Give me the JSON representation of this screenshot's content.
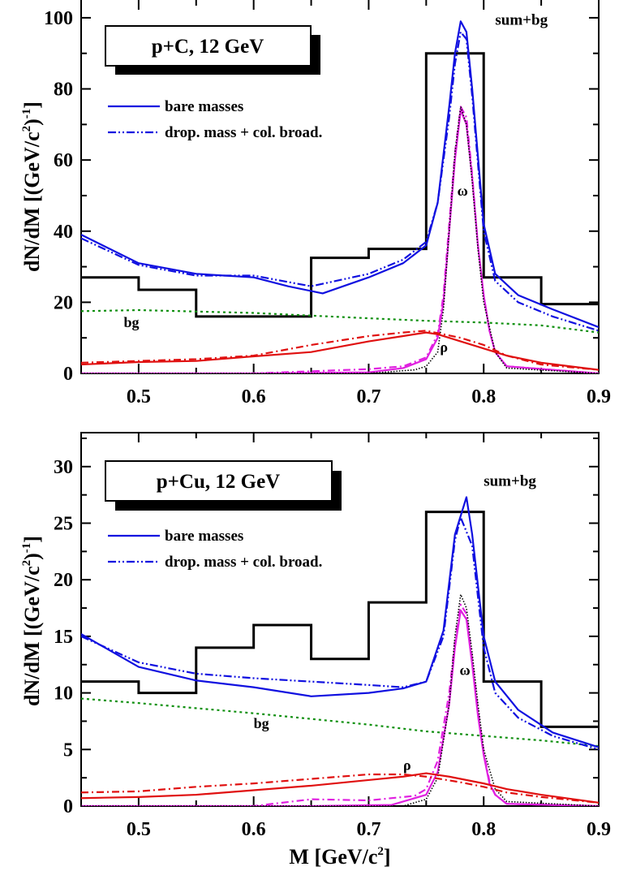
{
  "chart_data": [
    {
      "type": "line",
      "id": "top",
      "title": "p+C,  12 GeV",
      "xlabel": "",
      "ylabel": "dN/dM [(GeV/c²)⁻¹]",
      "ylabel_parts": {
        "main": "dN/dM [(GeV/c",
        "sq": "2",
        "close": ")",
        "exp": "-1",
        "end": "]"
      },
      "xlim": [
        0.45,
        0.9
      ],
      "ylim": [
        0,
        105
      ],
      "xticks": [
        0.5,
        0.6,
        0.7,
        0.8,
        0.9
      ],
      "xtick_labels": [
        "0.5",
        "0.6",
        "0.7",
        "0.8",
        "0.9"
      ],
      "yticks": [
        0,
        20,
        40,
        60,
        80,
        100
      ],
      "ytick_labels": [
        "0",
        "20",
        "40",
        "60",
        "80",
        "100"
      ],
      "legend": [
        {
          "label": "bare masses",
          "style": "solid",
          "color": "#1010e0"
        },
        {
          "label": "drop. mass + col. broad.",
          "style": "dashdotdot",
          "color": "#1010e0"
        }
      ],
      "annotations": [
        {
          "text": "sum+bg",
          "x": 0.81,
          "y": 98
        },
        {
          "text": "ω",
          "x": 0.777,
          "y": 50
        },
        {
          "text": "ρ",
          "x": 0.762,
          "y": 6
        },
        {
          "text": "bg",
          "x": 0.487,
          "y": 13
        }
      ],
      "histogram": {
        "color": "#000000",
        "edges": [
          0.45,
          0.5,
          0.55,
          0.6,
          0.65,
          0.7,
          0.75,
          0.8,
          0.85,
          0.9
        ],
        "values": [
          27,
          23.5,
          16,
          16,
          32.5,
          35,
          90,
          27,
          19.5
        ]
      },
      "series": [
        {
          "name": "bg",
          "color": "#109010",
          "style": "dotted",
          "x": [
            0.45,
            0.5,
            0.6,
            0.7,
            0.75,
            0.8,
            0.85,
            0.9
          ],
          "y": [
            17.5,
            17.8,
            17,
            15.5,
            14.8,
            14.3,
            13.5,
            11.5
          ]
        },
        {
          "name": "sum+bg bare masses",
          "color": "#1010e0",
          "style": "solid",
          "x": [
            0.45,
            0.5,
            0.55,
            0.6,
            0.63,
            0.66,
            0.7,
            0.73,
            0.75,
            0.76,
            0.77,
            0.775,
            0.78,
            0.785,
            0.79,
            0.8,
            0.81,
            0.83,
            0.86,
            0.9
          ],
          "y": [
            39,
            31,
            28,
            27,
            24.5,
            22.5,
            27,
            31,
            36,
            48,
            75,
            90,
            99,
            96,
            80,
            42,
            28,
            22,
            18,
            13
          ]
        },
        {
          "name": "sum+bg dropping mass + collisional broadening",
          "color": "#1010e0",
          "style": "dashdotdot",
          "x": [
            0.45,
            0.5,
            0.55,
            0.6,
            0.65,
            0.7,
            0.73,
            0.75,
            0.76,
            0.77,
            0.775,
            0.78,
            0.785,
            0.79,
            0.8,
            0.81,
            0.83,
            0.86,
            0.9
          ],
          "y": [
            38,
            30.5,
            27.5,
            27.5,
            24.5,
            28,
            32,
            37,
            48,
            72,
            87,
            96,
            94,
            78,
            40,
            26,
            20,
            16,
            12
          ]
        },
        {
          "name": "omega bare masses",
          "color": "#e020e0",
          "style": "solid",
          "x": [
            0.45,
            0.6,
            0.7,
            0.73,
            0.75,
            0.76,
            0.765,
            0.77,
            0.775,
            0.78,
            0.785,
            0.79,
            0.795,
            0.8,
            0.805,
            0.81,
            0.82,
            0.9
          ],
          "y": [
            0,
            0,
            0.3,
            1.5,
            4,
            10,
            20,
            40,
            60,
            74,
            70,
            55,
            36,
            22,
            12,
            6,
            2,
            0
          ]
        },
        {
          "name": "omega dropping mass + collisional broadening",
          "color": "#e020e0",
          "style": "dashdot",
          "x": [
            0.45,
            0.6,
            0.65,
            0.7,
            0.73,
            0.75,
            0.76,
            0.765,
            0.77,
            0.775,
            0.78,
            0.785,
            0.79,
            0.795,
            0.8,
            0.805,
            0.81,
            0.82,
            0.9
          ],
          "y": [
            0,
            0,
            0.6,
            1.2,
            2,
            4.5,
            11,
            22,
            42,
            62,
            75,
            72,
            56,
            36,
            22,
            12,
            6,
            2,
            0
          ]
        },
        {
          "name": "omega vacuum",
          "color": "#000000",
          "style": "dotted-fine",
          "x": [
            0.45,
            0.7,
            0.74,
            0.75,
            0.76,
            0.765,
            0.77,
            0.775,
            0.78,
            0.785,
            0.79,
            0.795,
            0.8,
            0.81,
            0.82,
            0.9
          ],
          "y": [
            0,
            0,
            1,
            2,
            6,
            18,
            40,
            62,
            75,
            70,
            54,
            35,
            20,
            6,
            1.5,
            0
          ]
        },
        {
          "name": "rho bare masses",
          "color": "#e01010",
          "style": "solid",
          "x": [
            0.45,
            0.5,
            0.55,
            0.6,
            0.65,
            0.7,
            0.73,
            0.75,
            0.76,
            0.78,
            0.8,
            0.82,
            0.85,
            0.9
          ],
          "y": [
            2.5,
            3.2,
            3.5,
            4.8,
            6,
            9,
            10.5,
            11.5,
            11,
            9,
            7,
            5,
            3,
            1
          ]
        },
        {
          "name": "rho dropping mass + collisional broadening",
          "color": "#e01010",
          "style": "dashdot",
          "x": [
            0.45,
            0.5,
            0.55,
            0.6,
            0.65,
            0.7,
            0.73,
            0.75,
            0.78,
            0.8,
            0.82,
            0.85,
            0.9
          ],
          "y": [
            3,
            3.5,
            4,
            5,
            8,
            10.5,
            11.5,
            12,
            10,
            8,
            5,
            2.5,
            1
          ]
        }
      ]
    },
    {
      "type": "line",
      "id": "bottom",
      "title": "p+Cu,  12 GeV",
      "xlabel": "M  [GeV/c²]",
      "xlabel_parts": {
        "main": "M  [GeV/c",
        "sq": "2",
        "end": "]"
      },
      "ylabel": "dN/dM [(GeV/c²)⁻¹]",
      "ylabel_parts": {
        "main": "dN/dM [(GeV/c",
        "sq": "2",
        "close": ")",
        "exp": "-1",
        "end": "]"
      },
      "xlim": [
        0.45,
        0.9
      ],
      "ylim": [
        0,
        33
      ],
      "xticks": [
        0.5,
        0.6,
        0.7,
        0.8,
        0.9
      ],
      "xtick_labels": [
        "0.5",
        "0.6",
        "0.7",
        "0.8",
        "0.9"
      ],
      "yticks": [
        0,
        5,
        10,
        15,
        20,
        25,
        30
      ],
      "ytick_labels": [
        "0",
        "5",
        "10",
        "15",
        "20",
        "25",
        "30"
      ],
      "legend": [
        {
          "label": "bare masses",
          "style": "solid",
          "color": "#1010e0"
        },
        {
          "label": "drop. mass + col. broad.",
          "style": "dashdotdot",
          "color": "#1010e0"
        }
      ],
      "annotations": [
        {
          "text": "sum+bg",
          "x": 0.8,
          "y": 28.3
        },
        {
          "text": "ω",
          "x": 0.779,
          "y": 11.6
        },
        {
          "text": "ρ",
          "x": 0.73,
          "y": 3.2
        },
        {
          "text": "bg",
          "x": 0.6,
          "y": 6.9
        }
      ],
      "histogram": {
        "color": "#000000",
        "edges": [
          0.45,
          0.5,
          0.55,
          0.6,
          0.65,
          0.7,
          0.75,
          0.8,
          0.85,
          0.9
        ],
        "values": [
          11,
          10,
          14,
          16,
          13,
          18,
          26,
          11,
          7
        ]
      },
      "series": [
        {
          "name": "bg",
          "color": "#109010",
          "style": "dotted",
          "x": [
            0.45,
            0.5,
            0.6,
            0.7,
            0.75,
            0.8,
            0.85,
            0.9
          ],
          "y": [
            9.5,
            9.1,
            8.2,
            7.2,
            6.6,
            6.2,
            5.8,
            5.3
          ]
        },
        {
          "name": "sum+bg bare masses",
          "color": "#1010e0",
          "style": "solid",
          "x": [
            0.45,
            0.5,
            0.55,
            0.6,
            0.65,
            0.7,
            0.73,
            0.75,
            0.765,
            0.775,
            0.785,
            0.79,
            0.8,
            0.81,
            0.83,
            0.86,
            0.9
          ],
          "y": [
            15.2,
            12.3,
            11.1,
            10.5,
            9.7,
            10,
            10.4,
            11,
            15.5,
            24,
            27.3,
            24,
            15,
            11,
            8.5,
            6.5,
            5.2
          ]
        },
        {
          "name": "sum+bg dropping mass + collisional broadening",
          "color": "#1010e0",
          "style": "dashdotdot",
          "x": [
            0.45,
            0.5,
            0.55,
            0.6,
            0.65,
            0.7,
            0.73,
            0.75,
            0.765,
            0.775,
            0.78,
            0.79,
            0.8,
            0.81,
            0.83,
            0.86,
            0.9
          ],
          "y": [
            15,
            12.7,
            11.7,
            11.3,
            11,
            10.7,
            10.5,
            11,
            15,
            23.5,
            25.5,
            23,
            14,
            10,
            7.8,
            6.2,
            5
          ]
        },
        {
          "name": "omega bare masses",
          "color": "#e020e0",
          "style": "solid",
          "x": [
            0.45,
            0.65,
            0.72,
            0.75,
            0.76,
            0.77,
            0.775,
            0.78,
            0.785,
            0.79,
            0.795,
            0.8,
            0.805,
            0.81,
            0.82,
            0.9
          ],
          "y": [
            0,
            0,
            0.1,
            1,
            3,
            9,
            14,
            17.3,
            16.5,
            12.5,
            8,
            4.5,
            2,
            1,
            0.2,
            0
          ]
        },
        {
          "name": "omega dropping mass + collisional broadening",
          "color": "#e020e0",
          "style": "dashdot",
          "x": [
            0.45,
            0.6,
            0.65,
            0.7,
            0.74,
            0.75,
            0.76,
            0.77,
            0.775,
            0.78,
            0.785,
            0.79,
            0.795,
            0.8,
            0.805,
            0.81,
            0.82,
            0.9
          ],
          "y": [
            0,
            0,
            0.6,
            0.5,
            0.9,
            1.5,
            4,
            10,
            14.5,
            17.8,
            17,
            13,
            8.5,
            4.8,
            2.2,
            1,
            0.2,
            0
          ]
        },
        {
          "name": "omega vacuum",
          "color": "#000000",
          "style": "dotted-fine",
          "x": [
            0.45,
            0.73,
            0.75,
            0.76,
            0.77,
            0.775,
            0.78,
            0.785,
            0.79,
            0.795,
            0.8,
            0.81,
            0.82,
            0.9
          ],
          "y": [
            0,
            0,
            0.6,
            2.5,
            9,
            15,
            18.7,
            17.5,
            13.5,
            9,
            5,
            1.5,
            0.4,
            0
          ]
        },
        {
          "name": "rho bare masses",
          "color": "#e01010",
          "style": "solid",
          "x": [
            0.45,
            0.5,
            0.55,
            0.6,
            0.65,
            0.7,
            0.73,
            0.75,
            0.77,
            0.8,
            0.82,
            0.85,
            0.9
          ],
          "y": [
            0.7,
            0.8,
            1,
            1.4,
            1.8,
            2.3,
            2.6,
            2.9,
            2.6,
            2,
            1.5,
            1,
            0.3
          ]
        },
        {
          "name": "rho dropping mass + collisional broadening",
          "color": "#e01010",
          "style": "dashdot",
          "x": [
            0.45,
            0.5,
            0.55,
            0.6,
            0.65,
            0.7,
            0.73,
            0.75,
            0.78,
            0.8,
            0.82,
            0.85,
            0.9
          ],
          "y": [
            1.2,
            1.3,
            1.7,
            2,
            2.4,
            2.8,
            2.8,
            2.6,
            2.1,
            1.7,
            1.2,
            0.8,
            0.3
          ]
        }
      ]
    }
  ]
}
